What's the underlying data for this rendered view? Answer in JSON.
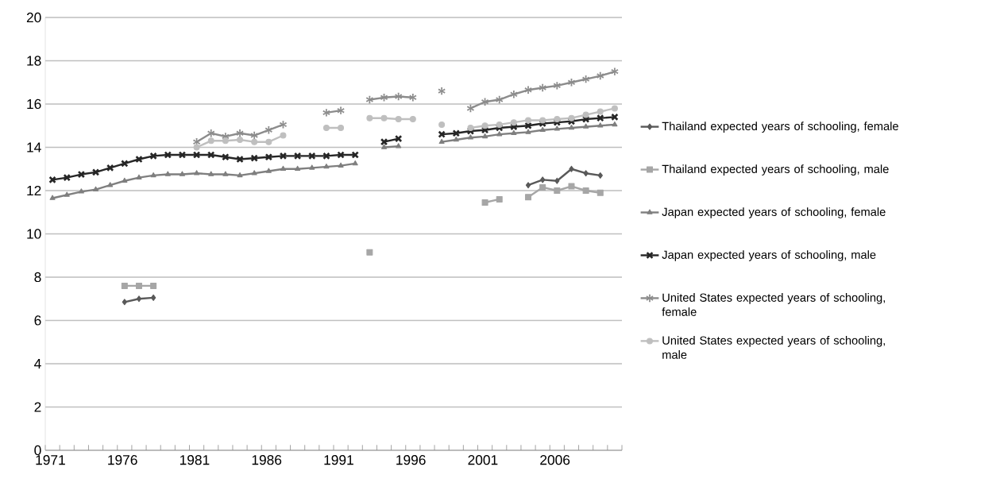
{
  "chart_data": {
    "type": "line",
    "categories": [
      "1971",
      null,
      null,
      null,
      null,
      "1976",
      null,
      null,
      null,
      null,
      "1981",
      null,
      null,
      null,
      null,
      "1986",
      null,
      null,
      null,
      null,
      "1991",
      null,
      null,
      null,
      null,
      "1996",
      null,
      null,
      null,
      null,
      "2001",
      null,
      null,
      null,
      null,
      "2006",
      null,
      null,
      null,
      null
    ],
    "series": [
      {
        "name": "Thailand expected years of schooling, female",
        "color": "#595959",
        "marker": "diamond",
        "values": [
          null,
          null,
          null,
          null,
          null,
          6.85,
          7.0,
          7.05,
          null,
          null,
          null,
          null,
          null,
          null,
          null,
          null,
          null,
          null,
          null,
          null,
          null,
          null,
          null,
          null,
          null,
          null,
          null,
          null,
          null,
          null,
          null,
          null,
          null,
          12.25,
          12.5,
          12.45,
          13.0,
          12.8,
          12.7,
          null
        ]
      },
      {
        "name": "Thailand expected years of schooling, male",
        "color": "#a6a6a6",
        "marker": "square",
        "values": [
          null,
          null,
          null,
          null,
          null,
          7.6,
          7.6,
          7.6,
          null,
          null,
          null,
          null,
          null,
          null,
          null,
          null,
          null,
          null,
          null,
          null,
          null,
          null,
          9.15,
          null,
          null,
          null,
          null,
          null,
          null,
          null,
          11.45,
          11.6,
          null,
          11.7,
          12.15,
          12.0,
          12.2,
          12.0,
          11.9,
          null
        ]
      },
      {
        "name": "Japan expected years of schooling, female",
        "color": "#7f7f7f",
        "marker": "triangle",
        "values": [
          11.65,
          11.8,
          11.95,
          12.05,
          12.25,
          12.45,
          12.6,
          12.7,
          12.75,
          12.75,
          12.8,
          12.75,
          12.75,
          12.7,
          12.8,
          12.9,
          13.0,
          13.0,
          13.05,
          13.1,
          13.15,
          13.25,
          null,
          14.0,
          14.05,
          null,
          null,
          14.25,
          14.35,
          14.45,
          14.5,
          14.6,
          14.65,
          14.7,
          14.8,
          14.85,
          14.9,
          14.95,
          15.0,
          15.05
        ]
      },
      {
        "name": "Japan expected years of schooling, male",
        "color": "#262626",
        "marker": "cross",
        "values": [
          12.5,
          12.6,
          12.75,
          12.85,
          13.05,
          13.25,
          13.45,
          13.6,
          13.65,
          13.65,
          13.65,
          13.65,
          13.55,
          13.45,
          13.5,
          13.55,
          13.6,
          13.6,
          13.6,
          13.6,
          13.65,
          13.65,
          null,
          14.25,
          14.4,
          null,
          null,
          14.6,
          14.65,
          14.75,
          14.8,
          14.9,
          14.95,
          15.0,
          15.1,
          15.15,
          15.2,
          15.3,
          15.35,
          15.4
        ]
      },
      {
        "name": "United States expected years of schooling, female",
        "color": "#8c8c8c",
        "marker": "star",
        "values": [
          null,
          null,
          null,
          null,
          null,
          null,
          null,
          null,
          null,
          null,
          14.25,
          14.65,
          14.5,
          14.65,
          14.55,
          14.8,
          15.05,
          null,
          null,
          15.6,
          15.7,
          null,
          16.2,
          16.3,
          16.35,
          16.3,
          null,
          16.6,
          null,
          15.8,
          16.1,
          16.2,
          16.45,
          16.65,
          16.75,
          16.85,
          17.0,
          17.15,
          17.3,
          17.5
        ]
      },
      {
        "name": "United States expected years of schooling, male",
        "color": "#bfbfbf",
        "marker": "circle",
        "values": [
          null,
          null,
          null,
          null,
          null,
          null,
          null,
          null,
          null,
          null,
          14.0,
          14.3,
          14.3,
          14.35,
          14.25,
          14.25,
          14.55,
          null,
          null,
          14.9,
          14.9,
          null,
          15.35,
          15.35,
          15.3,
          15.3,
          null,
          15.05,
          null,
          14.9,
          15.0,
          15.05,
          15.15,
          15.25,
          15.25,
          15.3,
          15.35,
          15.5,
          15.65,
          15.8
        ]
      }
    ],
    "ylim": [
      0,
      20
    ],
    "yticks": [
      0,
      2,
      4,
      6,
      8,
      10,
      12,
      14,
      16,
      18,
      20
    ],
    "grid": "y",
    "legend": "right"
  }
}
